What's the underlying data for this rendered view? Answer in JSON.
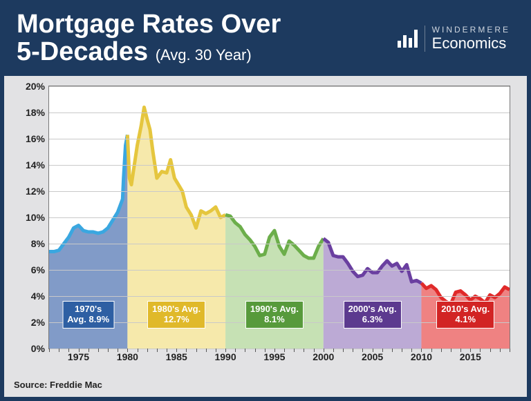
{
  "header": {
    "title_line1": "Mortgage Rates Over",
    "title_line2": "5-Decades",
    "title_suffix": "(Avg. 30 Year)",
    "logo_top": "WINDERMERE",
    "logo_main": "Economics"
  },
  "source_label": "Source: Freddie Mac",
  "chart": {
    "type": "area",
    "background_color": "#ffffff",
    "grid_color": "#c9c9c9",
    "axis_color": "#777777",
    "label_color": "#222222",
    "label_fontsize": 14,
    "label_fontweight": 700,
    "xlim": [
      1972,
      2019
    ],
    "ylim": [
      0,
      20
    ],
    "ytick_step": 2,
    "yticks": [
      "0%",
      "2%",
      "4%",
      "6%",
      "8%",
      "10%",
      "12%",
      "14%",
      "16%",
      "18%",
      "20%"
    ],
    "xtick_labels": [
      1975,
      1980,
      1985,
      1990,
      1995,
      2000,
      2005,
      2010,
      2015
    ],
    "xticks_minor": [
      1972,
      1973,
      1974,
      1975,
      1976,
      1977,
      1978,
      1979,
      1980,
      1981,
      1982,
      1983,
      1984,
      1985,
      1986,
      1987,
      1988,
      1989,
      1990,
      1991,
      1992,
      1993,
      1994,
      1995,
      1996,
      1997,
      1998,
      1999,
      2000,
      2001,
      2002,
      2003,
      2004,
      2005,
      2006,
      2007,
      2008,
      2009,
      2010,
      2011,
      2012,
      2013,
      2014,
      2015,
      2016,
      2017,
      2018,
      2019
    ],
    "decades": [
      {
        "start": 1972,
        "end": 1980,
        "line_color": "#3aa7e0",
        "fill_color": "#5d7fb9",
        "fill_opacity": 0.78,
        "badge_color": "#2e5fa3",
        "badge_line1": "1970's",
        "badge_line2": "Avg. 8.9%",
        "badge_fontsize": 13,
        "values": [
          [
            1972.0,
            7.4
          ],
          [
            1972.5,
            7.4
          ],
          [
            1973.0,
            7.5
          ],
          [
            1973.5,
            8.0
          ],
          [
            1974.0,
            8.5
          ],
          [
            1974.5,
            9.2
          ],
          [
            1975.0,
            9.4
          ],
          [
            1975.5,
            9.0
          ],
          [
            1976.0,
            8.9
          ],
          [
            1976.5,
            8.9
          ],
          [
            1977.0,
            8.8
          ],
          [
            1977.5,
            8.9
          ],
          [
            1978.0,
            9.2
          ],
          [
            1978.5,
            9.8
          ],
          [
            1979.0,
            10.4
          ],
          [
            1979.25,
            10.9
          ],
          [
            1979.5,
            11.4
          ],
          [
            1979.6,
            13.0
          ],
          [
            1979.8,
            15.5
          ],
          [
            1980.0,
            16.3
          ]
        ]
      },
      {
        "start": 1980,
        "end": 1990,
        "line_color": "#e5c63e",
        "fill_color": "#f3e08a",
        "fill_opacity": 0.72,
        "badge_color": "#e0b92a",
        "badge_line1": "1980's Avg.",
        "badge_line2": "12.7%",
        "badge_fontsize": 13,
        "values": [
          [
            1980.0,
            16.3
          ],
          [
            1980.2,
            13.0
          ],
          [
            1980.4,
            12.5
          ],
          [
            1980.7,
            14.0
          ],
          [
            1981.0,
            15.5
          ],
          [
            1981.4,
            17.0
          ],
          [
            1981.7,
            18.4
          ],
          [
            1982.0,
            17.5
          ],
          [
            1982.3,
            16.7
          ],
          [
            1982.6,
            15.0
          ],
          [
            1983.0,
            13.0
          ],
          [
            1983.5,
            13.5
          ],
          [
            1984.0,
            13.4
          ],
          [
            1984.4,
            14.4
          ],
          [
            1984.8,
            13.0
          ],
          [
            1985.2,
            12.5
          ],
          [
            1985.6,
            12.0
          ],
          [
            1986.0,
            10.8
          ],
          [
            1986.5,
            10.2
          ],
          [
            1987.0,
            9.2
          ],
          [
            1987.5,
            10.5
          ],
          [
            1988.0,
            10.3
          ],
          [
            1988.5,
            10.5
          ],
          [
            1989.0,
            10.8
          ],
          [
            1989.5,
            10.0
          ],
          [
            1990.0,
            10.2
          ]
        ]
      },
      {
        "start": 1990,
        "end": 2000,
        "line_color": "#6cae4a",
        "fill_color": "#a8d18d",
        "fill_opacity": 0.66,
        "badge_color": "#579a3b",
        "badge_line1": "1990's Avg.",
        "badge_line2": "8.1%",
        "badge_fontsize": 13,
        "values": [
          [
            1990.0,
            10.2
          ],
          [
            1990.5,
            10.1
          ],
          [
            1991.0,
            9.6
          ],
          [
            1991.5,
            9.3
          ],
          [
            1992.0,
            8.7
          ],
          [
            1992.5,
            8.3
          ],
          [
            1993.0,
            7.8
          ],
          [
            1993.5,
            7.1
          ],
          [
            1994.0,
            7.2
          ],
          [
            1994.5,
            8.5
          ],
          [
            1995.0,
            9.0
          ],
          [
            1995.5,
            7.8
          ],
          [
            1996.0,
            7.2
          ],
          [
            1996.5,
            8.2
          ],
          [
            1997.0,
            7.9
          ],
          [
            1997.5,
            7.5
          ],
          [
            1998.0,
            7.1
          ],
          [
            1998.5,
            6.9
          ],
          [
            1999.0,
            6.9
          ],
          [
            1999.5,
            7.8
          ],
          [
            2000.0,
            8.4
          ]
        ]
      },
      {
        "start": 2000,
        "end": 2010,
        "line_color": "#6a3fa0",
        "fill_color": "#9a7ec0",
        "fill_opacity": 0.66,
        "badge_color": "#5c3a8f",
        "badge_line1": "2000's Avg.",
        "badge_line2": "6.3%",
        "badge_fontsize": 13,
        "values": [
          [
            2000.0,
            8.4
          ],
          [
            2000.5,
            8.1
          ],
          [
            2001.0,
            7.1
          ],
          [
            2001.5,
            7.0
          ],
          [
            2002.0,
            7.0
          ],
          [
            2002.5,
            6.5
          ],
          [
            2003.0,
            5.9
          ],
          [
            2003.5,
            5.5
          ],
          [
            2004.0,
            5.6
          ],
          [
            2004.5,
            6.1
          ],
          [
            2005.0,
            5.8
          ],
          [
            2005.5,
            5.8
          ],
          [
            2006.0,
            6.3
          ],
          [
            2006.5,
            6.7
          ],
          [
            2007.0,
            6.3
          ],
          [
            2007.5,
            6.5
          ],
          [
            2008.0,
            5.9
          ],
          [
            2008.5,
            6.4
          ],
          [
            2009.0,
            5.1
          ],
          [
            2009.5,
            5.2
          ],
          [
            2010.0,
            5.0
          ]
        ]
      },
      {
        "start": 2010,
        "end": 2019,
        "line_color": "#e02a2a",
        "fill_color": "#e84d4d",
        "fill_opacity": 0.7,
        "badge_color": "#d22424",
        "badge_line1": "2010's Avg.",
        "badge_line2": "4.1%",
        "badge_fontsize": 13,
        "values": [
          [
            2010.0,
            5.0
          ],
          [
            2010.5,
            4.6
          ],
          [
            2011.0,
            4.8
          ],
          [
            2011.5,
            4.5
          ],
          [
            2012.0,
            3.9
          ],
          [
            2012.5,
            3.6
          ],
          [
            2013.0,
            3.4
          ],
          [
            2013.5,
            4.3
          ],
          [
            2014.0,
            4.4
          ],
          [
            2014.5,
            4.1
          ],
          [
            2015.0,
            3.7
          ],
          [
            2015.5,
            4.0
          ],
          [
            2016.0,
            3.8
          ],
          [
            2016.5,
            3.5
          ],
          [
            2017.0,
            4.1
          ],
          [
            2017.5,
            3.9
          ],
          [
            2018.0,
            4.2
          ],
          [
            2018.5,
            4.7
          ],
          [
            2019.0,
            4.5
          ]
        ]
      }
    ]
  }
}
